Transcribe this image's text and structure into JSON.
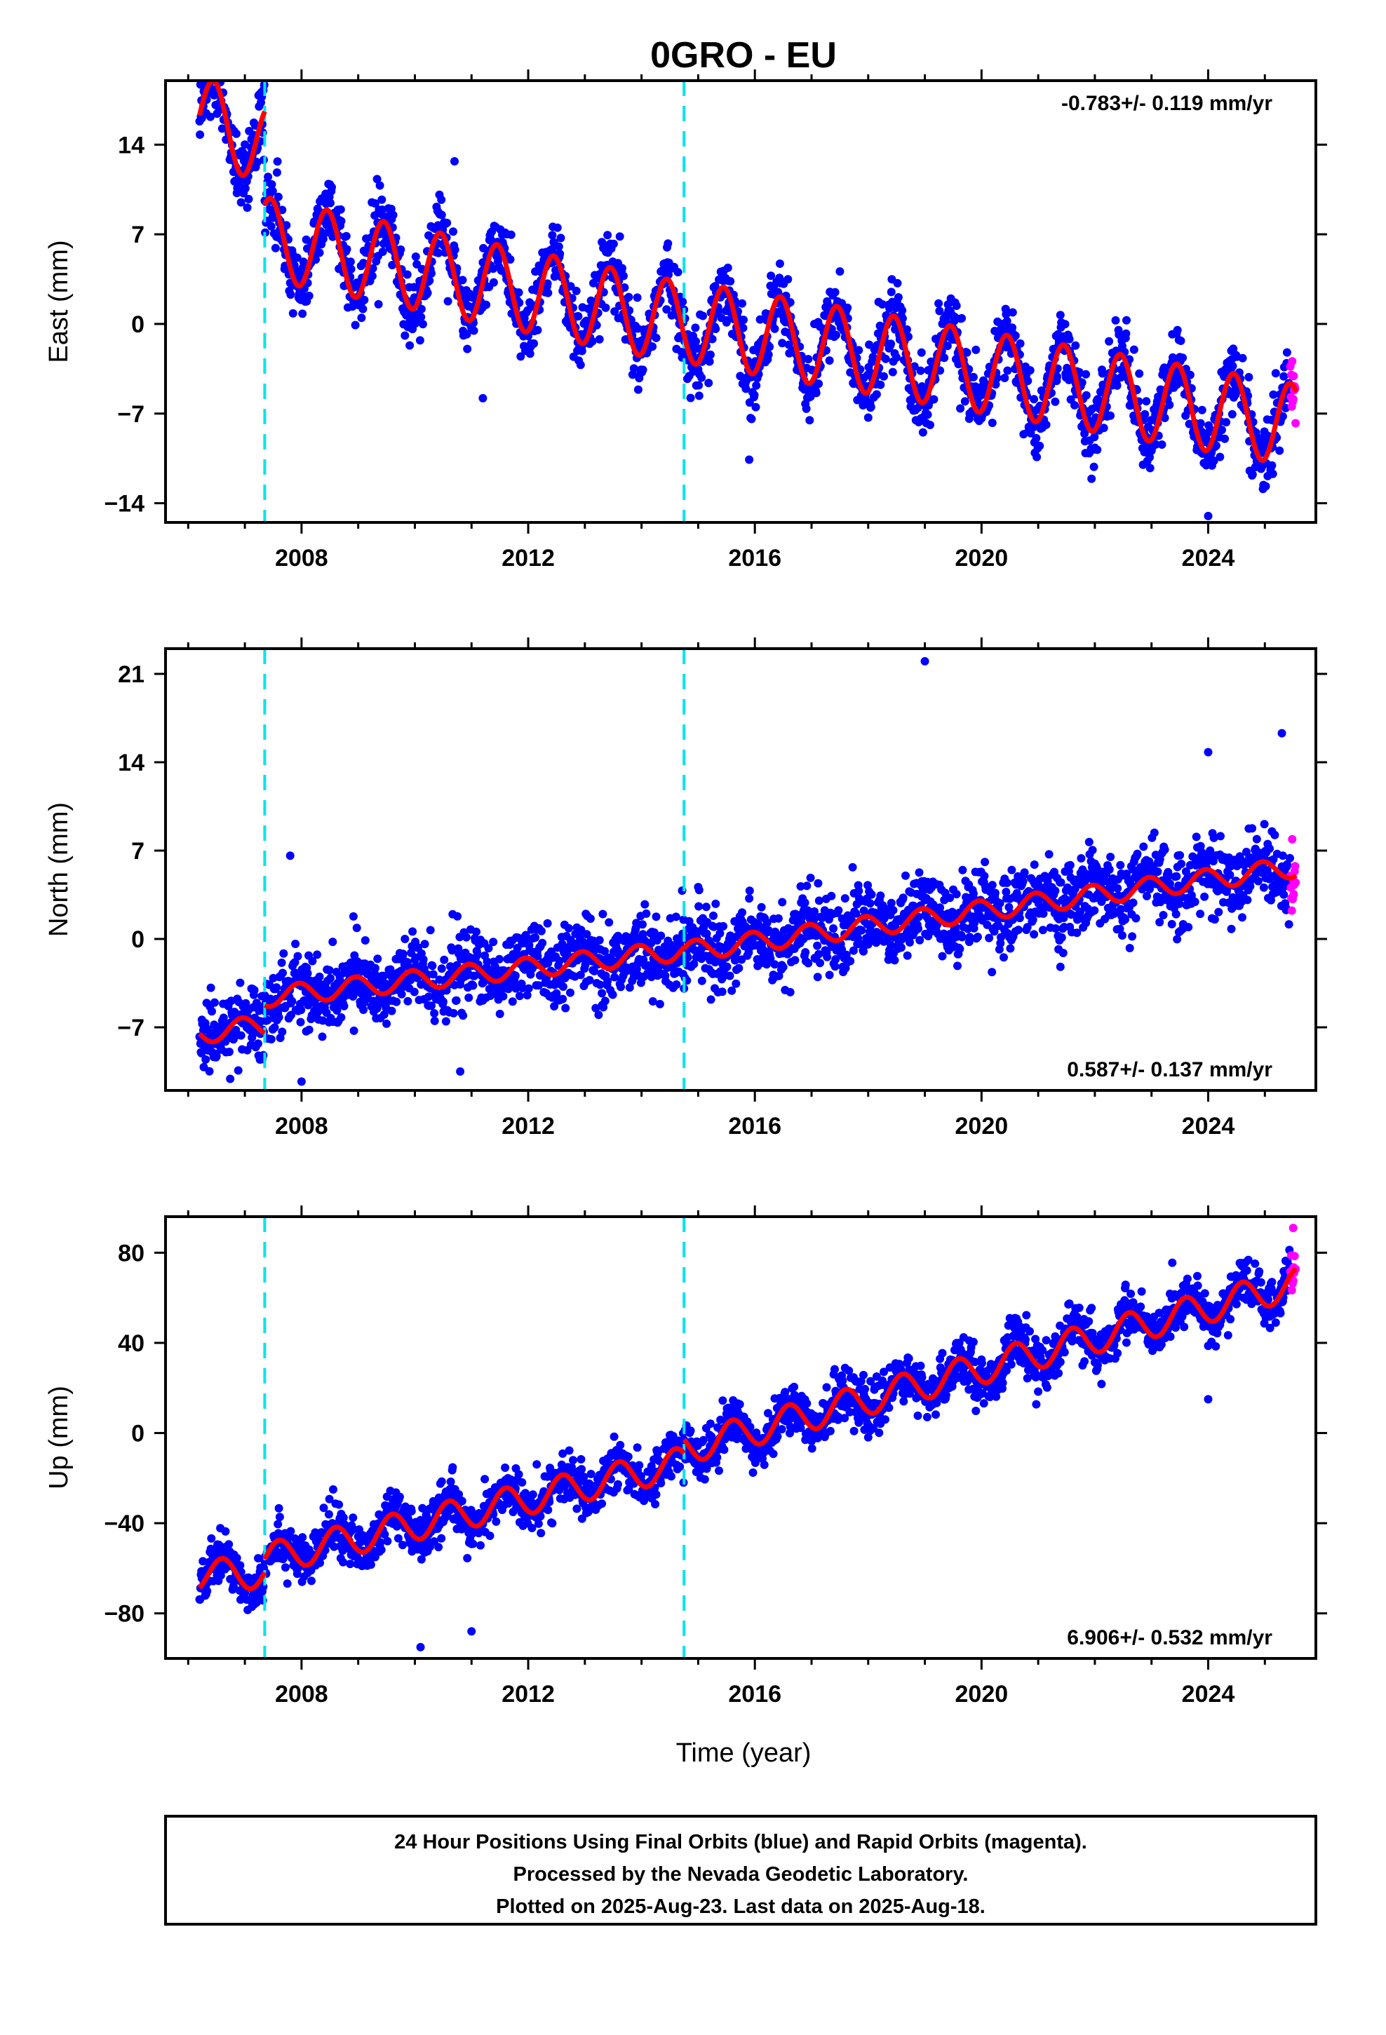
{
  "title": "0GRO - EU",
  "xlabel": "Time (year)",
  "footer": {
    "line1": "24 Hour Positions Using Final Orbits (blue) and Rapid Orbits (magenta).",
    "line2": "Processed by the Nevada Geodetic Laboratory.",
    "line3": "Plotted on 2025-Aug-23. Last data on 2025-Aug-18."
  },
  "colors": {
    "final_orbits": "#0000ff",
    "rapid_orbits": "#ff00ff",
    "model": "#ff0000",
    "offsets": "#00e5ee",
    "frame": "#000000"
  },
  "chart_data": [
    {
      "type": "scatter",
      "component": "east",
      "ylabel": "East (mm)",
      "xlim": [
        2005.6,
        2025.9
      ],
      "ylim": [
        -15.5,
        19.0
      ],
      "x_ticks": [
        2008,
        2012,
        2016,
        2020,
        2024
      ],
      "y_ticks": [
        -14,
        -7,
        0,
        7,
        14
      ],
      "rate_label": "-0.783+/- 0.119 mm/yr",
      "rate_position": "top-right",
      "offsets": [
        2007.35,
        2014.75
      ],
      "start_year": 2006.2,
      "end_year": 2025.55,
      "rapid_start_year": 2025.45,
      "model": {
        "segments": [
          {
            "from": 2006.2,
            "to": 2007.35,
            "value_at_start": 16.3,
            "slope": -2.0
          },
          {
            "from": 2007.35,
            "to": 2014.75,
            "value_at_start": 6.7,
            "slope": -0.9
          },
          {
            "from": 2014.75,
            "to": 2025.55,
            "value_at_start": 0.2,
            "slope": -0.75
          }
        ],
        "annual_amplitude": 3.2,
        "annual_peak_fraction": 0.45
      },
      "scatter_noise": 1.3,
      "outliers": [
        {
          "x": 2011.2,
          "y": -5.8
        },
        {
          "x": 2015.9,
          "y": -10.6
        },
        {
          "x": 2024.0,
          "y": -15.0
        },
        {
          "x": 2010.7,
          "y": 12.7
        }
      ]
    },
    {
      "type": "scatter",
      "component": "north",
      "ylabel": "North (mm)",
      "xlim": [
        2005.6,
        2025.9
      ],
      "ylim": [
        -12.0,
        23.0
      ],
      "x_ticks": [
        2008,
        2012,
        2016,
        2020,
        2024
      ],
      "y_ticks": [
        -7,
        0,
        7,
        14,
        21
      ],
      "rate_label": "0.587+/- 0.137 mm/yr",
      "rate_position": "bottom-right",
      "offsets": [
        2007.35,
        2014.75
      ],
      "start_year": 2006.2,
      "end_year": 2025.55,
      "rapid_start_year": 2025.45,
      "model": {
        "segments": [
          {
            "from": 2006.2,
            "to": 2007.35,
            "value_at_start": -7.5,
            "slope": 0.6
          },
          {
            "from": 2007.35,
            "to": 2014.75,
            "value_at_start": -4.6,
            "slope": 0.5
          },
          {
            "from": 2014.75,
            "to": 2025.55,
            "value_at_start": -1.0,
            "slope": 0.62
          }
        ],
        "annual_amplitude": 0.8,
        "annual_peak_fraction": 0.95
      },
      "scatter_noise": 1.4,
      "outliers": [
        {
          "x": 2019.0,
          "y": 22.0
        },
        {
          "x": 2025.3,
          "y": 16.3
        },
        {
          "x": 2024.0,
          "y": 14.8
        },
        {
          "x": 2007.8,
          "y": 6.6
        },
        {
          "x": 2010.8,
          "y": -10.5
        },
        {
          "x": 2008.0,
          "y": -11.3
        }
      ]
    },
    {
      "type": "scatter",
      "component": "up",
      "ylabel": "Up (mm)",
      "xlim": [
        2005.6,
        2025.9
      ],
      "ylim": [
        -100.0,
        96.0
      ],
      "x_ticks": [
        2008,
        2012,
        2016,
        2020,
        2024
      ],
      "y_ticks": [
        -80,
        -40,
        0,
        40,
        80
      ],
      "rate_label": "6.906+/- 0.532 mm/yr",
      "rate_position": "bottom-right",
      "offsets": [
        2007.35,
        2014.75
      ],
      "start_year": 2006.2,
      "end_year": 2025.55,
      "rapid_start_year": 2025.45,
      "model": {
        "segments": [
          {
            "from": 2006.2,
            "to": 2007.35,
            "value_at_start": -63.0,
            "slope": 1.0
          },
          {
            "from": 2007.35,
            "to": 2014.75,
            "value_at_start": -56.0,
            "slope": 5.8
          },
          {
            "from": 2014.75,
            "to": 2025.55,
            "value_at_start": -7.0,
            "slope": 6.8
          }
        ],
        "annual_amplitude": 7.0,
        "annual_peak_fraction": 0.6
      },
      "scatter_noise": 5.0,
      "outliers": [
        {
          "x": 2010.1,
          "y": -95.0
        },
        {
          "x": 2011.0,
          "y": -88.0
        },
        {
          "x": 2024.0,
          "y": 15.0
        },
        {
          "x": 2025.5,
          "y": 91.0
        }
      ]
    }
  ]
}
